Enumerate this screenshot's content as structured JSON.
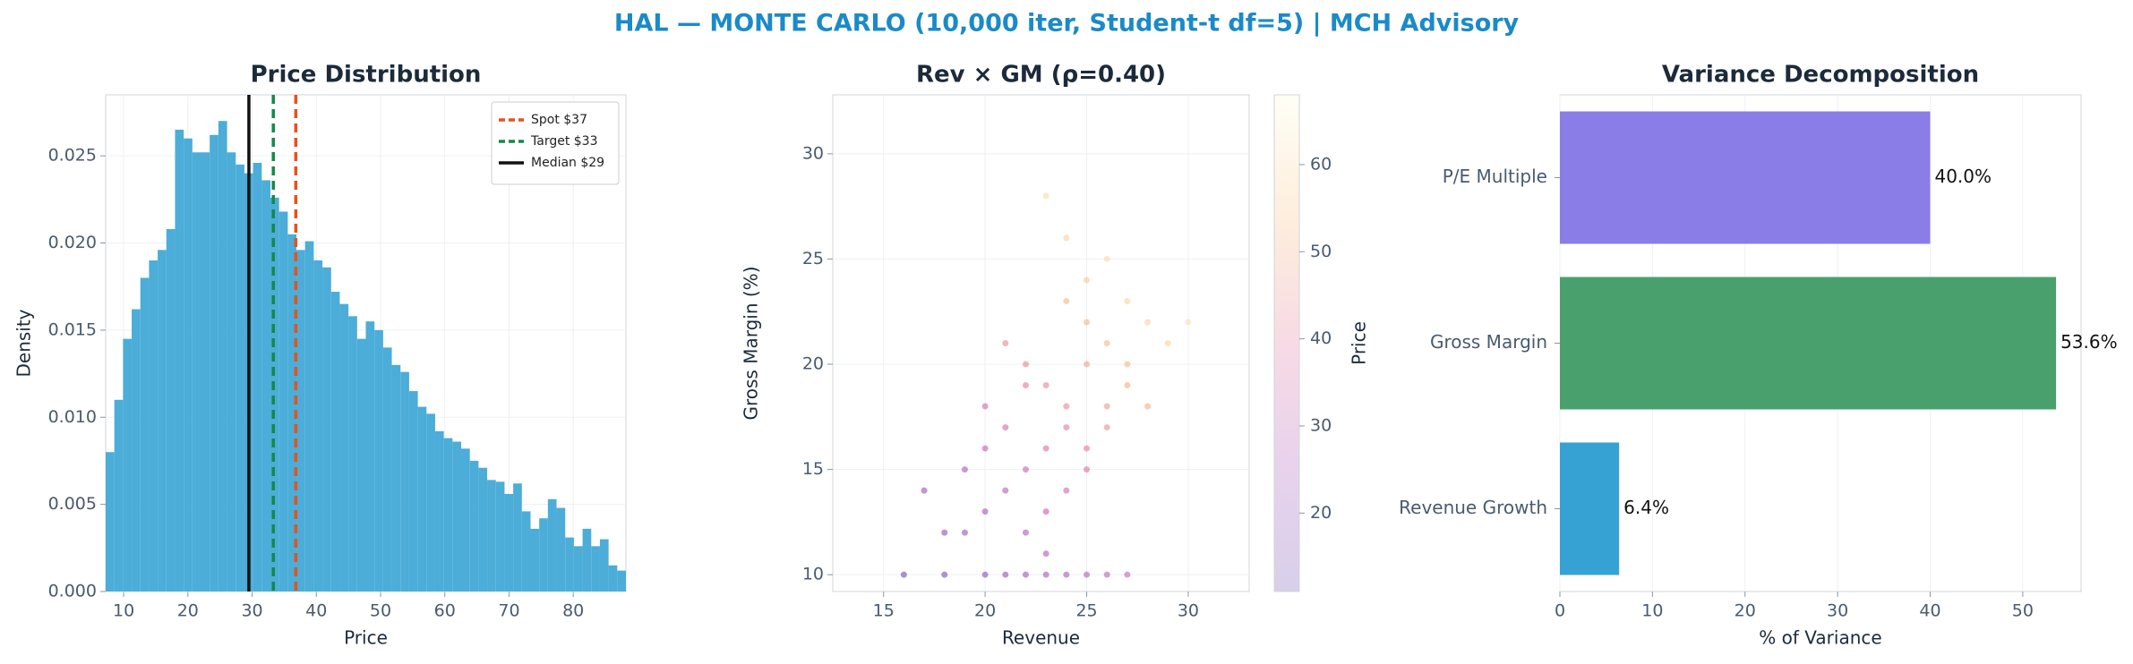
{
  "title": "HAL — MONTE CARLO (10,000 iter, Student-t df=5) | MCH Advisory",
  "chart_data": [
    {
      "type": "histogram",
      "title": "Price Distribution",
      "xlabel": "Price",
      "ylabel": "Density",
      "color": "#4badd8",
      "grid": true,
      "legend": "upper right",
      "bins": [
        7.2,
        8.55,
        9.9,
        11.25,
        12.6,
        13.95,
        15.3,
        16.65,
        18,
        19.35,
        20.7,
        22.05,
        23.4,
        24.75,
        26.1,
        27.45,
        28.8,
        30.15,
        31.5,
        32.85,
        34.2,
        35.55,
        36.9,
        38.25,
        39.6,
        40.95,
        42.3,
        43.65,
        45,
        46.35,
        47.7,
        49.05,
        50.4,
        51.75,
        53.1,
        54.45,
        55.8,
        57.15,
        58.5,
        59.85,
        61.2,
        62.55,
        63.9,
        65.25,
        66.6,
        67.95,
        69.3,
        70.65,
        72,
        73.35,
        74.7,
        76.05,
        77.4,
        78.75,
        80.1,
        81.45,
        82.8,
        84.15,
        85.5,
        86.85,
        88.2
      ],
      "values": [
        0.008,
        0.011,
        0.0145,
        0.0162,
        0.018,
        0.019,
        0.0196,
        0.0208,
        0.0265,
        0.026,
        0.0252,
        0.0252,
        0.0262,
        0.027,
        0.0252,
        0.0245,
        0.024,
        0.0246,
        0.0236,
        0.0226,
        0.0218,
        0.0205,
        0.0196,
        0.0201,
        0.019,
        0.0186,
        0.0172,
        0.0165,
        0.0158,
        0.0145,
        0.0155,
        0.015,
        0.014,
        0.013,
        0.0126,
        0.0115,
        0.0106,
        0.0102,
        0.0092,
        0.0088,
        0.0086,
        0.0082,
        0.0075,
        0.0071,
        0.0064,
        0.0063,
        0.0056,
        0.0062,
        0.0046,
        0.0036,
        0.0042,
        0.0053,
        0.0048,
        0.0031,
        0.0026,
        0.0036,
        0.0026,
        0.003,
        0.0015,
        0.0012
      ],
      "xlim": [
        7.2,
        88.2
      ],
      "xticks": [
        10,
        20,
        30,
        40,
        50,
        60,
        70,
        80
      ],
      "ylim": [
        0,
        0.0285
      ],
      "yticks": [
        {
          "value": 0,
          "label": "0.000"
        },
        {
          "value": 0.005,
          "label": "0.005"
        },
        {
          "value": 0.01,
          "label": "0.010"
        },
        {
          "value": 0.015,
          "label": "0.015"
        },
        {
          "value": 0.02,
          "label": "0.020"
        },
        {
          "value": 0.025,
          "label": "0.025"
        }
      ],
      "lines": [
        {
          "name": "Spot $37",
          "value": 36.8,
          "color": "#e8501a",
          "dashed": true
        },
        {
          "name": "Target $33",
          "value": 33.3,
          "color": "#16884a",
          "dashed": true
        },
        {
          "name": "Median $29",
          "value": 29.5,
          "color": "#111111",
          "dashed": false
        }
      ]
    },
    {
      "type": "scatter",
      "title": "Rev × GM (ρ=0.40)",
      "xlabel": "Revenue",
      "ylabel": "Gross Margin (%)",
      "grid": true,
      "x": [
        22,
        24,
        20,
        26,
        23,
        25,
        19,
        27,
        21,
        28,
        24,
        22,
        26,
        18,
        25,
        23,
        29,
        20,
        24,
        27,
        21,
        25,
        23,
        26,
        22,
        19,
        28,
        24,
        30,
        17,
        25,
        21,
        23,
        26,
        24,
        20,
        27,
        22,
        25,
        23,
        16,
        18,
        20,
        21,
        22,
        23,
        24,
        25,
        26,
        27
      ],
      "y": [
        15,
        18,
        13,
        21,
        16,
        20,
        12,
        23,
        14,
        22,
        17,
        19,
        18,
        12,
        24,
        13,
        21,
        16,
        14,
        19,
        17,
        22,
        11,
        25,
        20,
        15,
        18,
        23,
        22,
        14,
        16,
        21,
        19,
        17,
        26,
        18,
        20,
        12,
        15,
        28,
        10,
        10,
        10,
        10,
        10,
        10,
        10,
        10,
        10,
        10
      ],
      "c": [
        32,
        42,
        24,
        52,
        36,
        48,
        20,
        58,
        28,
        58,
        40,
        40,
        46,
        18,
        56,
        30,
        58,
        30,
        34,
        50,
        34,
        52,
        26,
        60,
        42,
        26,
        50,
        52,
        62,
        20,
        40,
        42,
        42,
        44,
        58,
        34,
        52,
        26,
        38,
        60,
        10,
        14,
        18,
        20,
        22,
        24,
        26,
        28,
        30,
        32
      ],
      "xlim": [
        12.5,
        33
      ],
      "xticks": [
        15,
        20,
        25,
        30
      ],
      "ylim": [
        9.2,
        32.8
      ],
      "yticks": [
        10,
        15,
        20,
        25,
        30
      ],
      "colorbar_label": "Price",
      "clim": [
        11,
        68
      ],
      "cticks": [
        20,
        30,
        40,
        50,
        60
      ],
      "colormap": [
        "#3b0f9a",
        "#8b1fa0",
        "#d9477a",
        "#f9a953",
        "#fefbd0"
      ]
    },
    {
      "type": "hbar",
      "title": "Variance Decomposition",
      "xlabel": "% of Variance",
      "grid": true,
      "categories": [
        "Revenue Growth",
        "Gross Margin",
        "P/E Multiple"
      ],
      "values": [
        6.4,
        53.6,
        40.0
      ],
      "value_labels": [
        "6.4%",
        "53.6%",
        "40.0%"
      ],
      "colors": [
        "#36a2d4",
        "#4aa06c",
        "#8a7de8"
      ],
      "xlim": [
        0,
        56.3
      ],
      "xticks": [
        0,
        10,
        20,
        30,
        40,
        50
      ]
    }
  ]
}
